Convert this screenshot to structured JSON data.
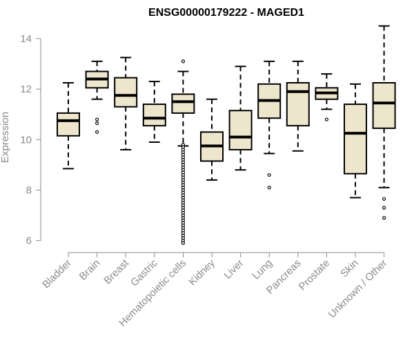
{
  "chart_data": {
    "type": "boxplot",
    "title": "ENSG00000179222 - MAGED1",
    "xlabel": "",
    "ylabel": "Expression",
    "ylim": [
      5.8,
      14.6
    ],
    "yticks": [
      6,
      8,
      10,
      12,
      14
    ],
    "grid": false,
    "colors": {
      "box_fill": "#ede6cc",
      "box_stroke": "#000000",
      "median": "#000000",
      "axis": "#8a8a8a"
    },
    "categories": [
      "Bladder",
      "Brain",
      "Breast",
      "Gastric",
      "Hematopoietic cells",
      "Kidney",
      "Liver",
      "Lung",
      "Pancreas",
      "Prostate",
      "Skin",
      "Unknown / Other"
    ],
    "boxes": [
      {
        "label": "Bladder",
        "whisker_low": 8.85,
        "q1": 10.15,
        "median": 10.75,
        "q3": 11.05,
        "whisker_high": 12.25,
        "outliers": []
      },
      {
        "label": "Brain",
        "whisker_low": 11.6,
        "q1": 12.05,
        "median": 12.4,
        "q3": 12.7,
        "whisker_high": 13.1,
        "outliers": [
          10.3,
          10.65,
          10.8
        ]
      },
      {
        "label": "Breast",
        "whisker_low": 9.6,
        "q1": 11.3,
        "median": 11.75,
        "q3": 12.45,
        "whisker_high": 13.25,
        "outliers": []
      },
      {
        "label": "Gastric",
        "whisker_low": 9.9,
        "q1": 10.55,
        "median": 10.85,
        "q3": 11.4,
        "whisker_high": 12.3,
        "outliers": []
      },
      {
        "label": "Hematopoietic cells",
        "whisker_low": 9.75,
        "q1": 11.05,
        "median": 11.5,
        "q3": 11.8,
        "whisker_high": 12.7,
        "outliers": [
          13.1,
          9.8,
          9.7,
          9.6,
          9.5,
          9.4,
          9.3,
          9.2,
          9.1,
          9.0,
          8.9,
          8.8,
          8.7,
          8.6,
          8.5,
          8.4,
          8.3,
          8.2,
          8.1,
          8.0,
          7.9,
          7.8,
          7.7,
          7.6,
          7.5,
          7.4,
          7.3,
          7.2,
          7.1,
          7.0,
          6.9,
          6.8,
          6.7,
          6.6,
          6.5,
          6.4,
          6.3,
          6.2,
          6.1,
          6.0,
          5.9
        ]
      },
      {
        "label": "Kidney",
        "whisker_low": 8.4,
        "q1": 9.15,
        "median": 9.75,
        "q3": 10.3,
        "whisker_high": 11.6,
        "outliers": []
      },
      {
        "label": "Liver",
        "whisker_low": 8.8,
        "q1": 9.6,
        "median": 10.1,
        "q3": 11.15,
        "whisker_high": 12.9,
        "outliers": []
      },
      {
        "label": "Lung",
        "whisker_low": 9.45,
        "q1": 10.85,
        "median": 11.55,
        "q3": 12.2,
        "whisker_high": 13.1,
        "outliers": [
          8.6,
          8.1
        ]
      },
      {
        "label": "Pancreas",
        "whisker_low": 9.55,
        "q1": 10.55,
        "median": 11.9,
        "q3": 12.25,
        "whisker_high": 13.1,
        "outliers": []
      },
      {
        "label": "Prostate",
        "whisker_low": 11.2,
        "q1": 11.6,
        "median": 11.85,
        "q3": 12.05,
        "whisker_high": 12.6,
        "outliers": [
          10.8
        ]
      },
      {
        "label": "Skin",
        "whisker_low": 7.7,
        "q1": 8.65,
        "median": 10.25,
        "q3": 11.4,
        "whisker_high": 12.2,
        "outliers": []
      },
      {
        "label": "Unknown / Other",
        "whisker_low": 8.1,
        "q1": 10.45,
        "median": 11.45,
        "q3": 12.25,
        "whisker_high": 14.5,
        "outliers": [
          7.65,
          7.3,
          6.9
        ]
      }
    ]
  }
}
